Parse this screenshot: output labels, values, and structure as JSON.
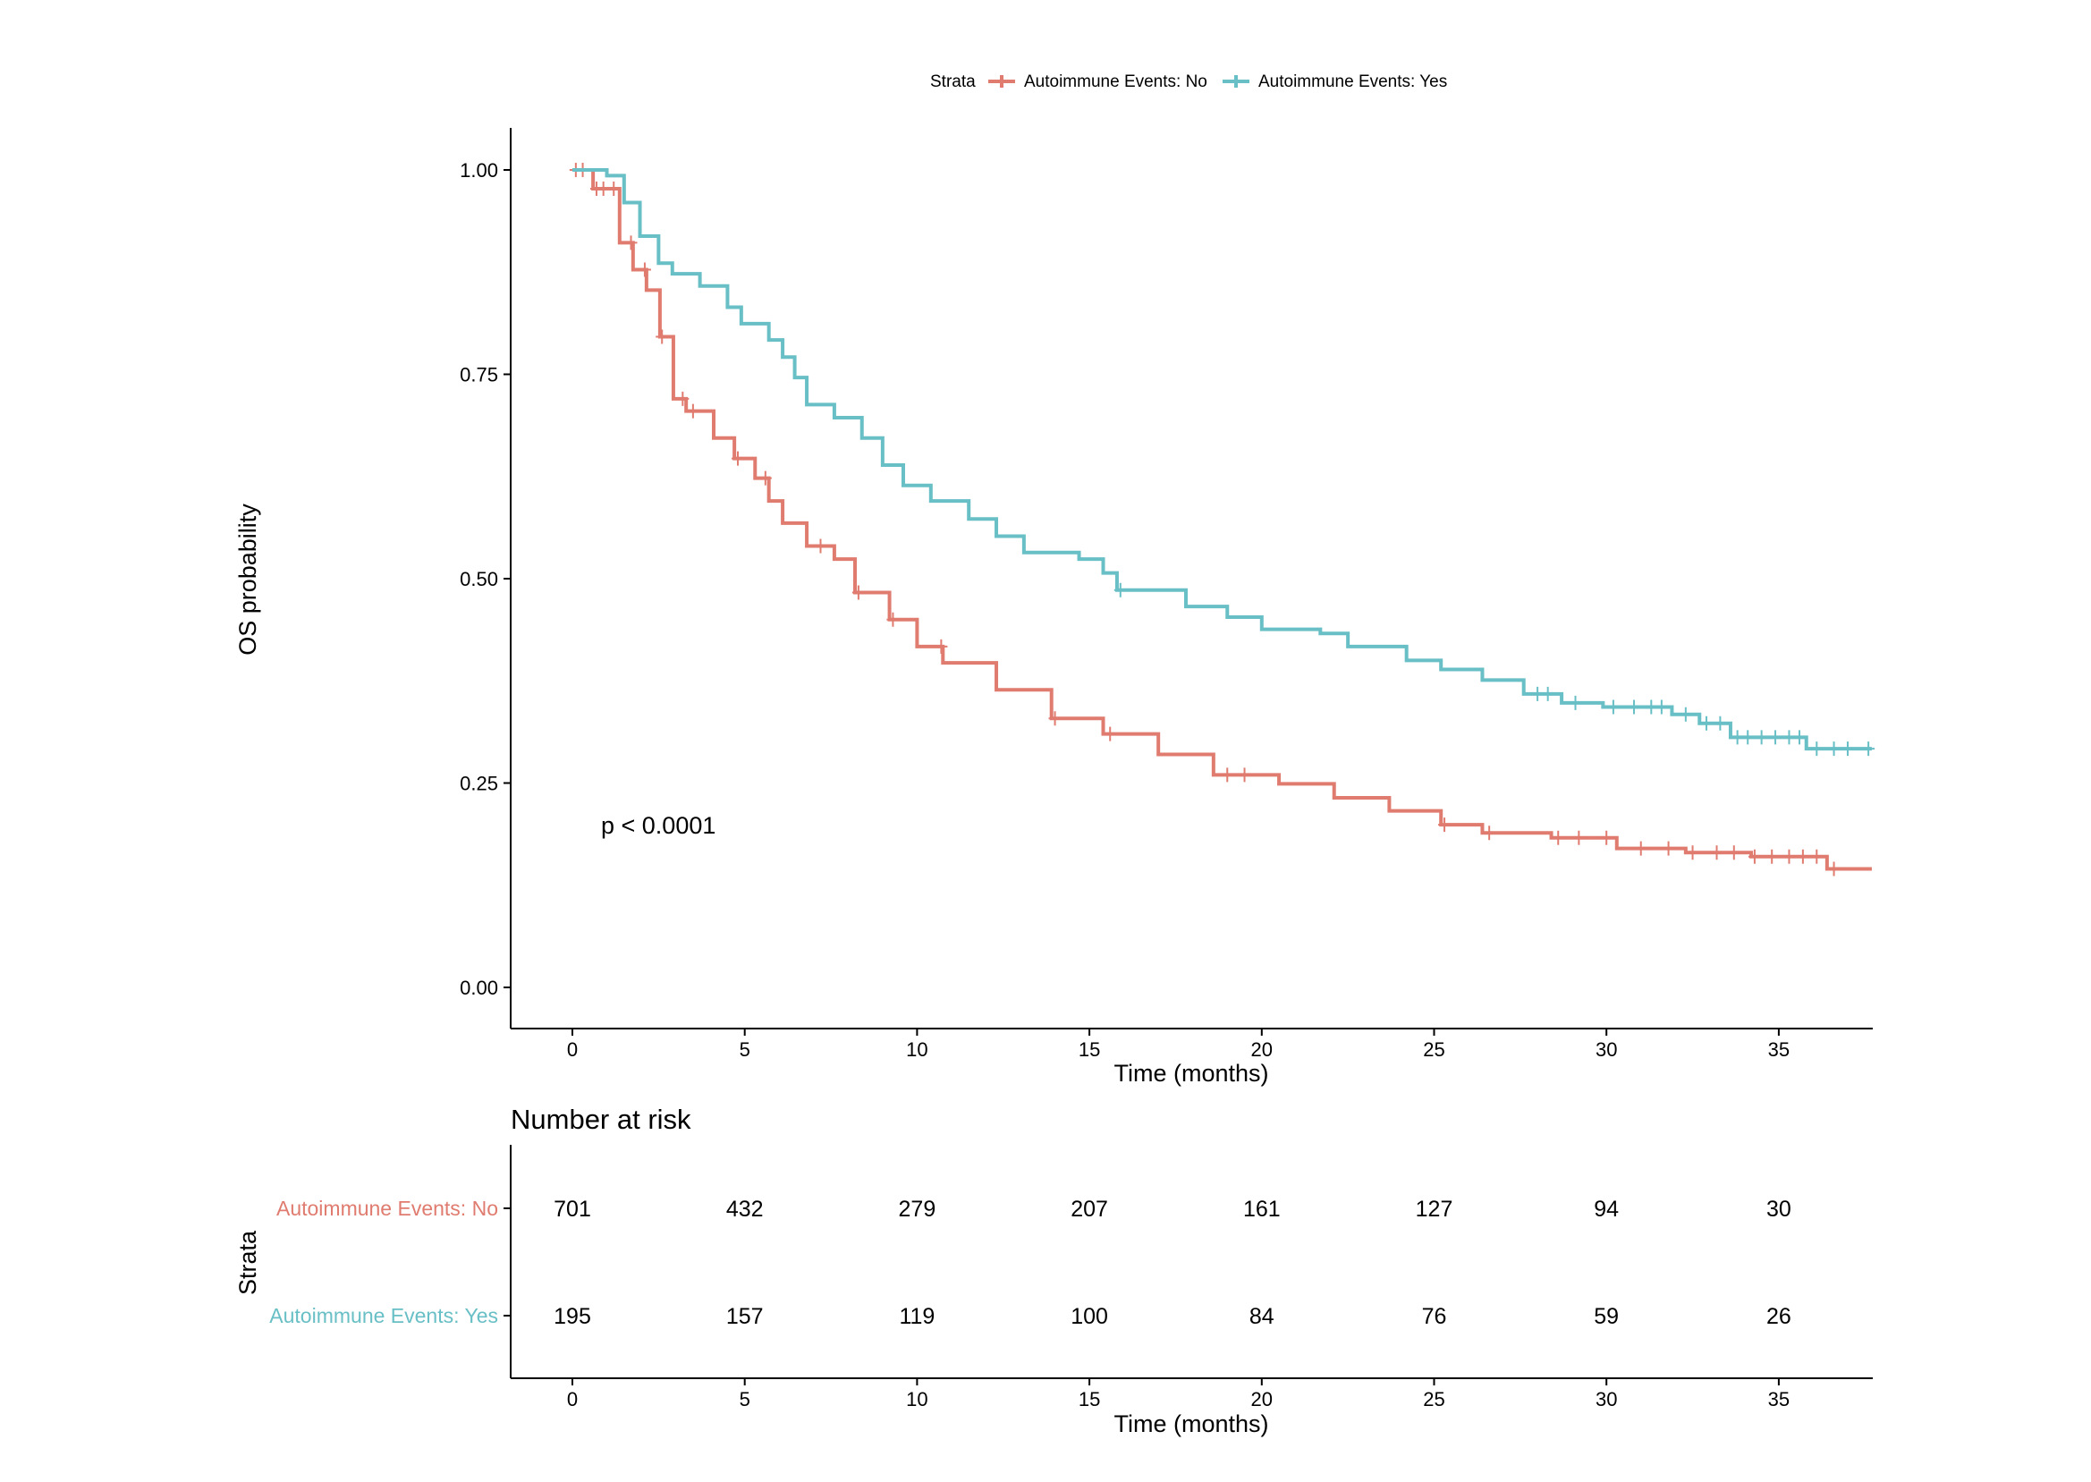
{
  "chart_data": {
    "type": "line",
    "subtype": "kaplan-meier",
    "legend": {
      "title": "Strata",
      "position": "top",
      "entries": [
        "Autoimmune Events: No",
        "Autoimmune Events: Yes"
      ]
    },
    "xlabel": "Time (months)",
    "ylabel": "OS probability",
    "xlim": [
      -1.8,
      37.8
    ],
    "ylim": [
      -0.05,
      1.05
    ],
    "xticks": [
      0,
      5,
      10,
      15,
      20,
      25,
      30,
      35
    ],
    "yticks": [
      "0.00",
      "0.25",
      "0.50",
      "0.75",
      "1.00"
    ],
    "grid": false,
    "annotation": "p < 0.0001",
    "series": [
      {
        "name": "Autoimmune Events: No",
        "color": "#E07B6F",
        "t": [
          0,
          0.6,
          1.37,
          1.76,
          2.15,
          2.54,
          2.93,
          3.3,
          4.1,
          4.7,
          5.3,
          5.7,
          6.1,
          6.8,
          7.6,
          8.2,
          9.2,
          10,
          10.75,
          12.3,
          13.9,
          15.4,
          17,
          18.6,
          20.5,
          22.1,
          23.7,
          25.2,
          26.4,
          28.4,
          30.3,
          32.3,
          34.2,
          36.4,
          37.7
        ],
        "s": [
          1,
          0.977,
          0.911,
          0.878,
          0.853,
          0.796,
          0.72,
          0.705,
          0.672,
          0.647,
          0.623,
          0.595,
          0.568,
          0.54,
          0.524,
          0.483,
          0.45,
          0.417,
          0.397,
          0.364,
          0.329,
          0.31,
          0.285,
          0.26,
          0.249,
          0.232,
          0.216,
          0.199,
          0.189,
          0.183,
          0.17,
          0.165,
          0.16,
          0.145,
          0.145
        ],
        "censor": [
          0.1,
          0.3,
          0.7,
          0.9,
          1.2,
          1.7,
          2.1,
          2.6,
          3.2,
          3.5,
          4.8,
          5.6,
          7.2,
          8.3,
          9.3,
          10.7,
          14.0,
          15.6,
          19.0,
          19.5,
          25.3,
          26.6,
          28.6,
          29.2,
          30.0,
          31.0,
          31.8,
          32.5,
          33.2,
          33.7,
          34.3,
          34.8,
          35.3,
          35.7,
          36.1,
          36.6
        ]
      },
      {
        "name": "Autoimmune Events: Yes",
        "color": "#68BFC5",
        "t": [
          0,
          1.0,
          1.5,
          1.96,
          2.5,
          2.9,
          3.7,
          4.5,
          4.9,
          5.7,
          6.1,
          6.45,
          6.8,
          7.6,
          8.4,
          9.0,
          9.6,
          10.4,
          11.5,
          12.3,
          13.1,
          14.7,
          15.4,
          15.8,
          17.8,
          19.0,
          20.0,
          21.7,
          22.5,
          24.2,
          25.2,
          26.4,
          27.6,
          28.7,
          29.9,
          31.9,
          32.7,
          33.6,
          35.8,
          37.7
        ],
        "s": [
          1,
          0.993,
          0.96,
          0.919,
          0.886,
          0.873,
          0.858,
          0.832,
          0.812,
          0.792,
          0.771,
          0.746,
          0.713,
          0.697,
          0.672,
          0.639,
          0.614,
          0.595,
          0.573,
          0.552,
          0.532,
          0.524,
          0.507,
          0.486,
          0.466,
          0.453,
          0.438,
          0.433,
          0.417,
          0.4,
          0.389,
          0.376,
          0.359,
          0.348,
          0.343,
          0.334,
          0.323,
          0.306,
          0.292,
          0.292
        ],
        "censor": [
          15.9,
          28.0,
          28.3,
          29.1,
          30.2,
          30.8,
          31.3,
          31.6,
          32.3,
          32.9,
          33.3,
          33.8,
          34.1,
          34.5,
          34.9,
          35.3,
          35.6,
          36.1,
          36.6,
          37.0,
          37.6
        ]
      }
    ],
    "risk_table": {
      "title": "Number at risk",
      "ylabel": "Strata",
      "xlabel": "Time (months)",
      "times": [
        0,
        5,
        10,
        15,
        20,
        25,
        30,
        35
      ],
      "rows": [
        {
          "label": "Autoimmune Events: No",
          "values": [
            701,
            432,
            279,
            207,
            161,
            127,
            94,
            30
          ]
        },
        {
          "label": "Autoimmune Events: Yes",
          "values": [
            195,
            157,
            119,
            100,
            84,
            76,
            59,
            26
          ]
        }
      ]
    }
  }
}
